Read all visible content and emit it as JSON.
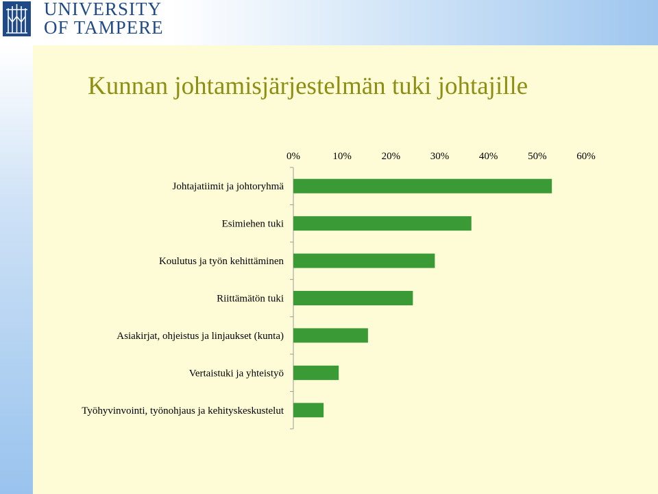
{
  "header": {
    "university_line1": "UNIVERSITY",
    "university_line2": "OF TAMPERE"
  },
  "slide": {
    "title": "Kunnan johtamisjärjestelmän tuki johtajille"
  },
  "colors": {
    "bar": "#3a9a35",
    "title": "#8e8e14",
    "brand": "#1f4a85"
  },
  "chart_data": {
    "type": "bar",
    "orientation": "horizontal",
    "title": "",
    "xlabel": "",
    "ylabel": "",
    "xlim": [
      0,
      60
    ],
    "x_tick_values": [
      0,
      10,
      20,
      30,
      40,
      50,
      60
    ],
    "x_tick_labels": [
      "0%",
      "10%",
      "20%",
      "30%",
      "40%",
      "50%",
      "60%"
    ],
    "x_axis_position": "top",
    "grid": false,
    "legend": "none",
    "categories": [
      "Johtajatiimit ja johtoryhmä",
      "Esimiehen tuki",
      "Koulutus ja työn kehittäminen",
      "Riittämätön tuki",
      "Asiakirjat, ohjeistus ja linjaukset (kunta)",
      "Vertaistuki ja yhteistyö",
      "Työhyvinvointi, työnohjaus ja kehityskeskustelut"
    ],
    "values": [
      53,
      36.5,
      29,
      24.5,
      15.3,
      9.3,
      6.2
    ]
  }
}
